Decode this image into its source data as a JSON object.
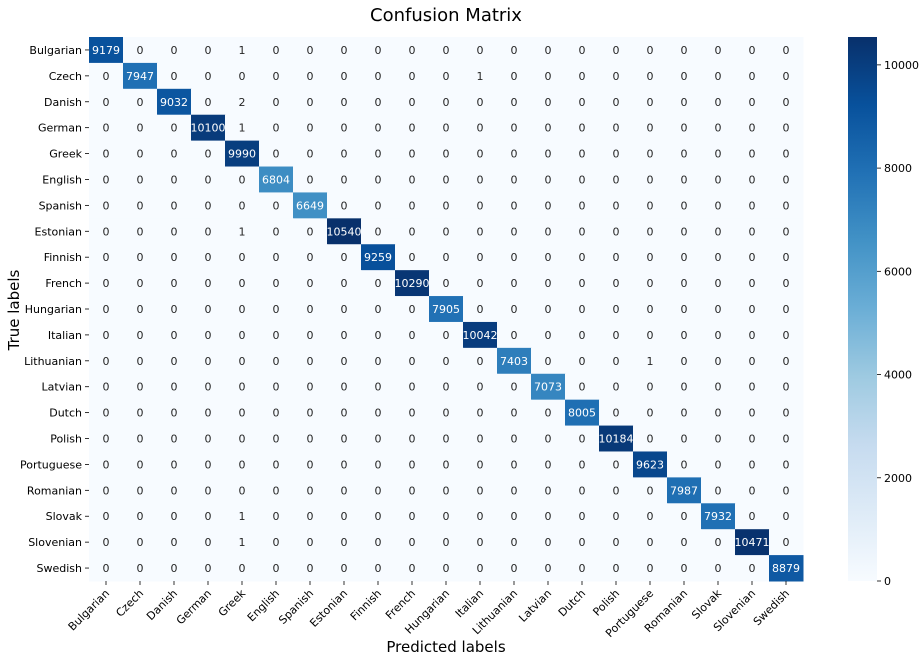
{
  "chart_data": {
    "type": "heatmap",
    "title": "Confusion Matrix",
    "xlabel": "Predicted labels",
    "ylabel": "True labels",
    "categories": [
      "Bulgarian",
      "Czech",
      "Danish",
      "German",
      "Greek",
      "English",
      "Spanish",
      "Estonian",
      "Finnish",
      "French",
      "Hungarian",
      "Italian",
      "Lithuanian",
      "Latvian",
      "Dutch",
      "Polish",
      "Portuguese",
      "Romanian",
      "Slovak",
      "Slovenian",
      "Swedish"
    ],
    "matrix": [
      [
        9179,
        0,
        0,
        0,
        1,
        0,
        0,
        0,
        0,
        0,
        0,
        0,
        0,
        0,
        0,
        0,
        0,
        0,
        0,
        0,
        0
      ],
      [
        0,
        7947,
        0,
        0,
        0,
        0,
        0,
        0,
        0,
        0,
        0,
        1,
        0,
        0,
        0,
        0,
        0,
        0,
        0,
        0,
        0
      ],
      [
        0,
        0,
        9032,
        0,
        2,
        0,
        0,
        0,
        0,
        0,
        0,
        0,
        0,
        0,
        0,
        0,
        0,
        0,
        0,
        0,
        0
      ],
      [
        0,
        0,
        0,
        10100,
        1,
        0,
        0,
        0,
        0,
        0,
        0,
        0,
        0,
        0,
        0,
        0,
        0,
        0,
        0,
        0,
        0
      ],
      [
        0,
        0,
        0,
        0,
        9990,
        0,
        0,
        0,
        0,
        0,
        0,
        0,
        0,
        0,
        0,
        0,
        0,
        0,
        0,
        0,
        0
      ],
      [
        0,
        0,
        0,
        0,
        0,
        6804,
        0,
        0,
        0,
        0,
        0,
        0,
        0,
        0,
        0,
        0,
        0,
        0,
        0,
        0,
        0
      ],
      [
        0,
        0,
        0,
        0,
        0,
        0,
        6649,
        0,
        0,
        0,
        0,
        0,
        0,
        0,
        0,
        0,
        0,
        0,
        0,
        0,
        0
      ],
      [
        0,
        0,
        0,
        0,
        1,
        0,
        0,
        10540,
        0,
        0,
        0,
        0,
        0,
        0,
        0,
        0,
        0,
        0,
        0,
        0,
        0
      ],
      [
        0,
        0,
        0,
        0,
        0,
        0,
        0,
        0,
        9259,
        0,
        0,
        0,
        0,
        0,
        0,
        0,
        0,
        0,
        0,
        0,
        0
      ],
      [
        0,
        0,
        0,
        0,
        0,
        0,
        0,
        0,
        0,
        10290,
        0,
        0,
        0,
        0,
        0,
        0,
        0,
        0,
        0,
        0,
        0
      ],
      [
        0,
        0,
        0,
        0,
        0,
        0,
        0,
        0,
        0,
        0,
        7905,
        0,
        0,
        0,
        0,
        0,
        0,
        0,
        0,
        0,
        0
      ],
      [
        0,
        0,
        0,
        0,
        0,
        0,
        0,
        0,
        0,
        0,
        0,
        10042,
        0,
        0,
        0,
        0,
        0,
        0,
        0,
        0,
        0
      ],
      [
        0,
        0,
        0,
        0,
        0,
        0,
        0,
        0,
        0,
        0,
        0,
        0,
        7403,
        0,
        0,
        0,
        1,
        0,
        0,
        0,
        0
      ],
      [
        0,
        0,
        0,
        0,
        0,
        0,
        0,
        0,
        0,
        0,
        0,
        0,
        0,
        7073,
        0,
        0,
        0,
        0,
        0,
        0,
        0
      ],
      [
        0,
        0,
        0,
        0,
        0,
        0,
        0,
        0,
        0,
        0,
        0,
        0,
        0,
        0,
        8005,
        0,
        0,
        0,
        0,
        0,
        0
      ],
      [
        0,
        0,
        0,
        0,
        0,
        0,
        0,
        0,
        0,
        0,
        0,
        0,
        0,
        0,
        0,
        10184,
        0,
        0,
        0,
        0,
        0
      ],
      [
        0,
        0,
        0,
        0,
        0,
        0,
        0,
        0,
        0,
        0,
        0,
        0,
        0,
        0,
        0,
        0,
        9623,
        0,
        0,
        0,
        0
      ],
      [
        0,
        0,
        0,
        0,
        0,
        0,
        0,
        0,
        0,
        0,
        0,
        0,
        0,
        0,
        0,
        0,
        0,
        7987,
        0,
        0,
        0
      ],
      [
        0,
        0,
        0,
        0,
        1,
        0,
        0,
        0,
        0,
        0,
        0,
        0,
        0,
        0,
        0,
        0,
        0,
        0,
        7932,
        0,
        0
      ],
      [
        0,
        0,
        0,
        0,
        1,
        0,
        0,
        0,
        0,
        0,
        0,
        0,
        0,
        0,
        0,
        0,
        0,
        0,
        0,
        10471,
        0
      ],
      [
        0,
        0,
        0,
        0,
        0,
        0,
        0,
        0,
        0,
        0,
        0,
        0,
        0,
        0,
        0,
        0,
        0,
        0,
        0,
        0,
        8879
      ]
    ],
    "colormap": "Blues",
    "colorbar": {
      "min": 0,
      "max": 10540,
      "ticks": [
        0,
        2000,
        4000,
        6000,
        8000,
        10000
      ]
    },
    "colors": {
      "low": "#f7fbff",
      "high": "#08306b",
      "text_light": "#ffffff",
      "text_dark": "#262626"
    }
  }
}
